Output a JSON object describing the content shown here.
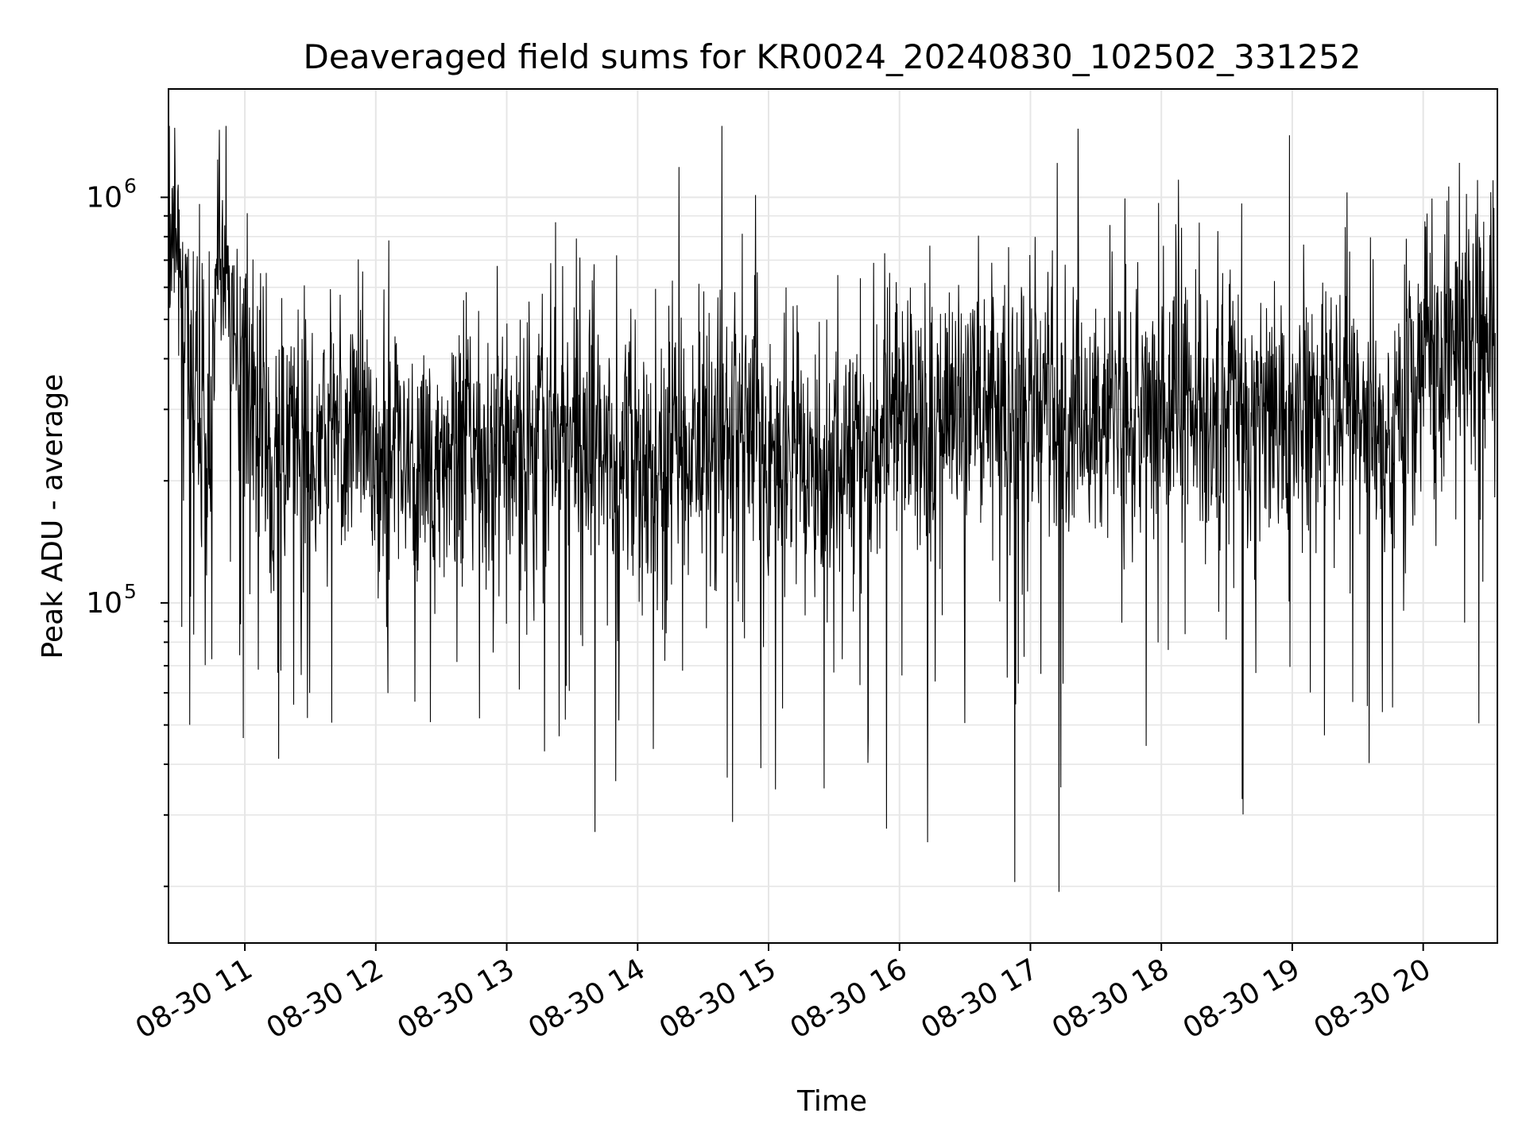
{
  "chart_data": {
    "type": "line",
    "title": "Deaveraged field sums for KR0024_20240830_102502_331252",
    "xlabel": "Time",
    "ylabel": "Peak ADU - average",
    "x_scale": "time",
    "y_scale": "log",
    "xlim": [
      "2024-08-30 10:25:00",
      "2024-08-30 20:34:00"
    ],
    "ylim": [
      14500,
      1850000
    ],
    "grid": true,
    "legend": "none",
    "line_color": "#000000",
    "grid_color": "#e6e6e6",
    "x_ticks": [
      {
        "t": "2024-08-30 11:00",
        "label": "08-30 11"
      },
      {
        "t": "2024-08-30 12:00",
        "label": "08-30 12"
      },
      {
        "t": "2024-08-30 13:00",
        "label": "08-30 13"
      },
      {
        "t": "2024-08-30 14:00",
        "label": "08-30 14"
      },
      {
        "t": "2024-08-30 15:00",
        "label": "08-30 15"
      },
      {
        "t": "2024-08-30 16:00",
        "label": "08-30 16"
      },
      {
        "t": "2024-08-30 17:00",
        "label": "08-30 17"
      },
      {
        "t": "2024-08-30 18:00",
        "label": "08-30 18"
      },
      {
        "t": "2024-08-30 19:00",
        "label": "08-30 19"
      },
      {
        "t": "2024-08-30 20:00",
        "label": "08-30 20"
      }
    ],
    "y_ticks": [
      {
        "value": 100000,
        "base": "10",
        "exp": "5"
      },
      {
        "value": 1000000,
        "base": "10",
        "exp": "6"
      }
    ],
    "series": [
      {
        "x": [
          "2024-08-30 10:25",
          "2024-08-30 10:28",
          "2024-08-30 10:32",
          "2024-08-30 10:36",
          "2024-08-30 10:40",
          "2024-08-30 10:44",
          "2024-08-30 10:48",
          "2024-08-30 10:52",
          "2024-08-30 10:56",
          "2024-08-30 11:05",
          "2024-08-30 11:10",
          "2024-08-30 11:20",
          "2024-08-30 11:30",
          "2024-08-30 11:40",
          "2024-08-30 11:47",
          "2024-08-30 12:00",
          "2024-08-30 12:10",
          "2024-08-30 12:20",
          "2024-08-30 12:30",
          "2024-08-30 12:45",
          "2024-08-30 13:00",
          "2024-08-30 13:12",
          "2024-08-30 13:30",
          "2024-08-30 13:45",
          "2024-08-30 14:00",
          "2024-08-30 14:10",
          "2024-08-30 14:20",
          "2024-08-30 14:30",
          "2024-08-30 14:45",
          "2024-08-30 14:52",
          "2024-08-30 15:00",
          "2024-08-30 15:15",
          "2024-08-30 15:20",
          "2024-08-30 15:30",
          "2024-08-30 15:45",
          "2024-08-30 16:00",
          "2024-08-30 16:15",
          "2024-08-30 16:30",
          "2024-08-30 16:45",
          "2024-08-30 17:00",
          "2024-08-30 17:15",
          "2024-08-30 17:30",
          "2024-08-30 17:45",
          "2024-08-30 18:00",
          "2024-08-30 18:15",
          "2024-08-30 18:30",
          "2024-08-30 18:45",
          "2024-08-30 19:00",
          "2024-08-30 19:15",
          "2024-08-30 19:30",
          "2024-08-30 19:40",
          "2024-08-30 19:50",
          "2024-08-30 20:00",
          "2024-08-30 20:10",
          "2024-08-30 20:20",
          "2024-08-30 20:33"
        ],
        "y": [
          800000,
          900000,
          500000,
          350000,
          300000,
          280000,
          650000,
          700000,
          380000,
          280000,
          240000,
          260000,
          230000,
          270000,
          250000,
          240000,
          260000,
          220000,
          240000,
          250000,
          230000,
          240000,
          260000,
          250000,
          230000,
          210000,
          240000,
          250000,
          270000,
          300000,
          240000,
          220000,
          200000,
          230000,
          250000,
          280000,
          260000,
          300000,
          290000,
          310000,
          280000,
          260000,
          300000,
          320000,
          300000,
          310000,
          280000,
          300000,
          330000,
          310000,
          250000,
          260000,
          380000,
          430000,
          480000,
          500000
        ]
      }
    ]
  }
}
